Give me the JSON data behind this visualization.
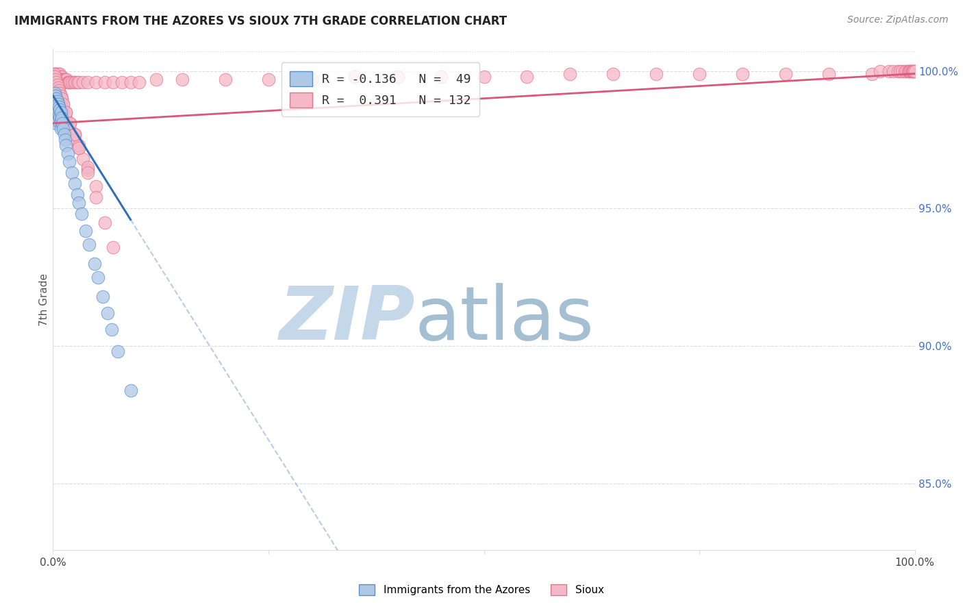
{
  "title": "IMMIGRANTS FROM THE AZORES VS SIOUX 7TH GRADE CORRELATION CHART",
  "source": "Source: ZipAtlas.com",
  "ylabel": "7th Grade",
  "blue_label": "Immigrants from the Azores",
  "pink_label": "Sioux",
  "blue_R": -0.136,
  "blue_N": 49,
  "pink_R": 0.391,
  "pink_N": 132,
  "blue_color": "#aec8e8",
  "pink_color": "#f4b8c8",
  "blue_edge": "#5590c8",
  "pink_edge": "#e8708a",
  "trend_blue": "#3070b8",
  "trend_pink": "#d85878",
  "right_yticks": [
    85.0,
    90.0,
    95.0,
    100.0
  ],
  "ylim_low": 0.826,
  "ylim_high": 1.008,
  "xlim_low": 0.0,
  "xlim_high": 1.0,
  "blue_x": [
    0.001,
    0.001,
    0.001,
    0.002,
    0.002,
    0.002,
    0.003,
    0.003,
    0.003,
    0.003,
    0.004,
    0.004,
    0.004,
    0.004,
    0.005,
    0.005,
    0.005,
    0.006,
    0.006,
    0.006,
    0.007,
    0.007,
    0.008,
    0.008,
    0.009,
    0.009,
    0.009,
    0.01,
    0.011,
    0.012,
    0.013,
    0.014,
    0.015,
    0.017,
    0.019,
    0.022,
    0.025,
    0.028,
    0.03,
    0.033,
    0.038,
    0.042,
    0.048,
    0.052,
    0.058,
    0.063,
    0.068,
    0.075,
    0.09
  ],
  "blue_y": [
    0.99,
    0.987,
    0.984,
    0.992,
    0.989,
    0.985,
    0.991,
    0.988,
    0.985,
    0.982,
    0.99,
    0.987,
    0.984,
    0.981,
    0.989,
    0.986,
    0.983,
    0.988,
    0.985,
    0.982,
    0.987,
    0.984,
    0.986,
    0.983,
    0.985,
    0.982,
    0.979,
    0.983,
    0.981,
    0.979,
    0.977,
    0.975,
    0.973,
    0.97,
    0.967,
    0.963,
    0.959,
    0.955,
    0.952,
    0.948,
    0.942,
    0.937,
    0.93,
    0.925,
    0.918,
    0.912,
    0.906,
    0.898,
    0.884
  ],
  "pink_x": [
    0.001,
    0.001,
    0.001,
    0.002,
    0.002,
    0.002,
    0.003,
    0.003,
    0.004,
    0.004,
    0.005,
    0.005,
    0.006,
    0.006,
    0.007,
    0.007,
    0.008,
    0.008,
    0.009,
    0.009,
    0.01,
    0.011,
    0.012,
    0.013,
    0.014,
    0.015,
    0.016,
    0.017,
    0.018,
    0.019,
    0.02,
    0.022,
    0.024,
    0.026,
    0.028,
    0.03,
    0.035,
    0.04,
    0.05,
    0.06,
    0.07,
    0.08,
    0.09,
    0.1,
    0.12,
    0.15,
    0.2,
    0.25,
    0.3,
    0.35,
    0.4,
    0.45,
    0.5,
    0.55,
    0.6,
    0.65,
    0.7,
    0.75,
    0.8,
    0.85,
    0.9,
    0.95,
    0.96,
    0.97,
    0.975,
    0.98,
    0.983,
    0.985,
    0.988,
    0.99,
    0.992,
    0.993,
    0.994,
    0.995,
    0.996,
    0.997,
    0.998,
    0.999,
    0.999,
    1.0,
    0.001,
    0.002,
    0.003,
    0.004,
    0.005,
    0.006,
    0.007,
    0.008,
    0.009,
    0.01,
    0.012,
    0.014,
    0.016,
    0.018,
    0.02,
    0.025,
    0.03,
    0.035,
    0.04,
    0.05,
    0.002,
    0.003,
    0.004,
    0.005,
    0.006,
    0.008,
    0.01,
    0.012,
    0.015,
    0.02,
    0.025,
    0.03,
    0.04,
    0.001,
    0.002,
    0.003,
    0.004,
    0.005,
    0.006,
    0.007,
    0.008,
    0.009,
    0.01,
    0.012,
    0.015,
    0.02,
    0.025,
    0.03,
    0.04,
    0.05,
    0.06,
    0.07
  ],
  "pink_y": [
    0.999,
    0.998,
    0.997,
    0.999,
    0.998,
    0.997,
    0.999,
    0.998,
    0.999,
    0.998,
    0.999,
    0.998,
    0.999,
    0.998,
    0.999,
    0.997,
    0.999,
    0.997,
    0.998,
    0.997,
    0.998,
    0.997,
    0.997,
    0.997,
    0.997,
    0.997,
    0.997,
    0.996,
    0.996,
    0.996,
    0.996,
    0.996,
    0.996,
    0.996,
    0.996,
    0.996,
    0.996,
    0.996,
    0.996,
    0.996,
    0.996,
    0.996,
    0.996,
    0.996,
    0.997,
    0.997,
    0.997,
    0.997,
    0.997,
    0.998,
    0.998,
    0.998,
    0.998,
    0.998,
    0.999,
    0.999,
    0.999,
    0.999,
    0.999,
    0.999,
    0.999,
    0.999,
    1.0,
    1.0,
    1.0,
    1.0,
    1.0,
    1.0,
    1.0,
    1.0,
    1.0,
    1.0,
    1.0,
    1.0,
    1.0,
    1.0,
    1.0,
    1.0,
    1.0,
    1.0,
    0.997,
    0.996,
    0.995,
    0.994,
    0.993,
    0.992,
    0.991,
    0.99,
    0.989,
    0.988,
    0.986,
    0.984,
    0.982,
    0.98,
    0.978,
    0.975,
    0.972,
    0.968,
    0.964,
    0.958,
    0.998,
    0.997,
    0.996,
    0.995,
    0.994,
    0.992,
    0.99,
    0.988,
    0.985,
    0.981,
    0.977,
    0.973,
    0.965,
    0.999,
    0.998,
    0.997,
    0.996,
    0.995,
    0.994,
    0.993,
    0.992,
    0.991,
    0.99,
    0.988,
    0.985,
    0.981,
    0.977,
    0.972,
    0.963,
    0.954,
    0.945,
    0.936
  ],
  "blue_trend_x0": 0.0,
  "blue_trend_x1": 0.09,
  "blue_trend_y0": 0.991,
  "blue_trend_y1": 0.946,
  "pink_trend_x0": 0.0,
  "pink_trend_x1": 1.0,
  "pink_trend_y0": 0.981,
  "pink_trend_y1": 0.999
}
